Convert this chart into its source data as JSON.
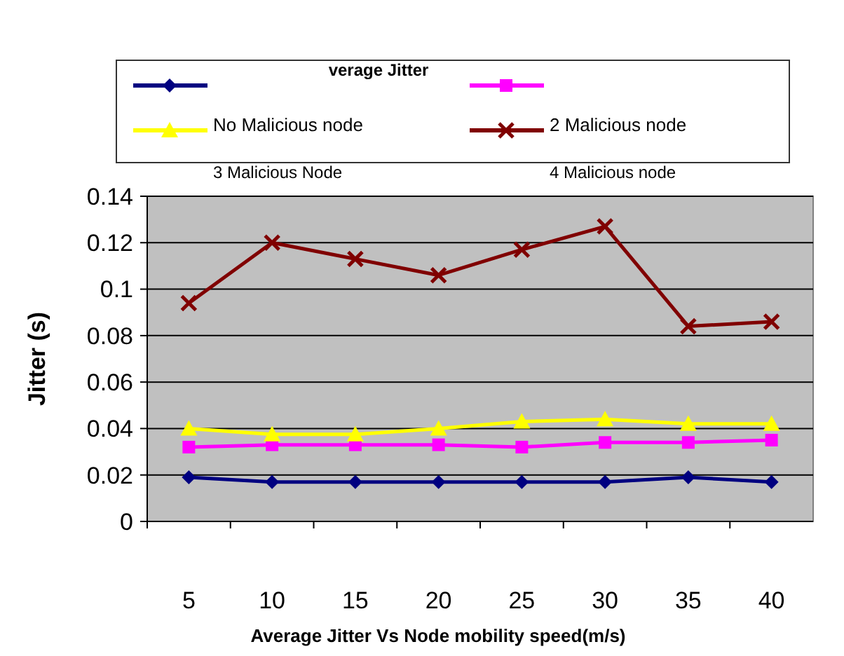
{
  "chart_data": {
    "type": "line",
    "legend_title": "verage Jitter",
    "xlabel": "Average Jitter Vs Node mobility speed(m/s)",
    "ylabel": "Jitter (s)",
    "categories": [
      "5",
      "10",
      "15",
      "20",
      "25",
      "30",
      "35",
      "40"
    ],
    "series": [
      {
        "color": "#000080",
        "marker": "diamond",
        "values": [
          0.019,
          0.017,
          0.017,
          0.017,
          0.017,
          0.017,
          0.019,
          0.017
        ]
      },
      {
        "color": "#ff00ff",
        "marker": "square",
        "values": [
          0.032,
          0.033,
          0.033,
          0.033,
          0.032,
          0.034,
          0.034,
          0.035
        ]
      },
      {
        "name": "No Malicious node",
        "color": "#ffff00",
        "marker": "triangle",
        "values": [
          0.04,
          0.0375,
          0.0375,
          0.04,
          0.043,
          0.044,
          0.042,
          0.042
        ]
      },
      {
        "name": "2 Malicious node",
        "color": "#800000",
        "marker": "cross",
        "values": [
          0.094,
          0.12,
          0.113,
          0.106,
          0.117,
          0.127,
          0.084,
          0.086
        ]
      }
    ],
    "annotations": [
      "3 Malicious Node",
      "4 Malicious node"
    ],
    "ylim": [
      0,
      0.14
    ],
    "yticks": [
      0,
      0.02,
      0.04,
      0.06,
      0.08,
      0.1,
      0.12,
      0.14
    ],
    "grid": "y",
    "legend": "top"
  }
}
